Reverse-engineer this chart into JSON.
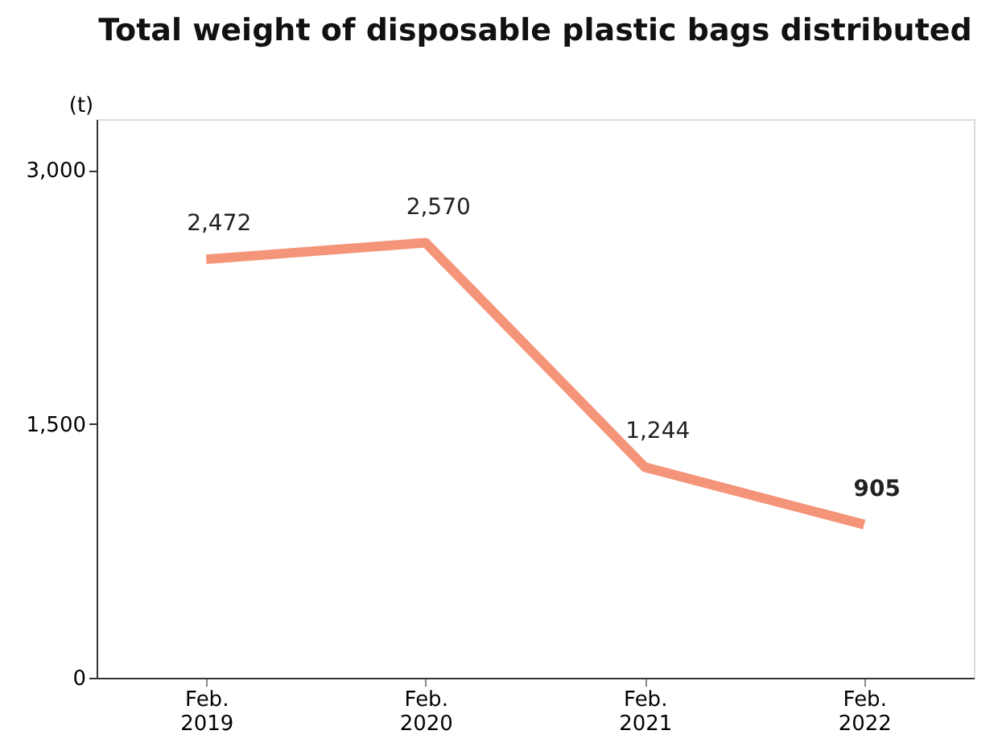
{
  "chart_data": {
    "type": "line",
    "title": "Total weight of disposable plastic bags distributed",
    "ylabel": "(t)",
    "categories": [
      "Feb. 2019",
      "Feb. 2020",
      "Feb. 2021",
      "Feb. 2022"
    ],
    "series": [
      {
        "color": "#f4957a",
        "values": [
          2472,
          2570,
          1244,
          905
        ],
        "value_labels": [
          "2,472",
          "2,570",
          "1,244",
          "905"
        ]
      }
    ],
    "ylim": [
      0,
      3300
    ],
    "yticks": [
      0,
      {
        "value": 1500,
        "label": "1,500"
      },
      {
        "value": 3000,
        "label": "3,000"
      }
    ],
    "grid": false,
    "marker": "none",
    "line_style": "solid"
  }
}
